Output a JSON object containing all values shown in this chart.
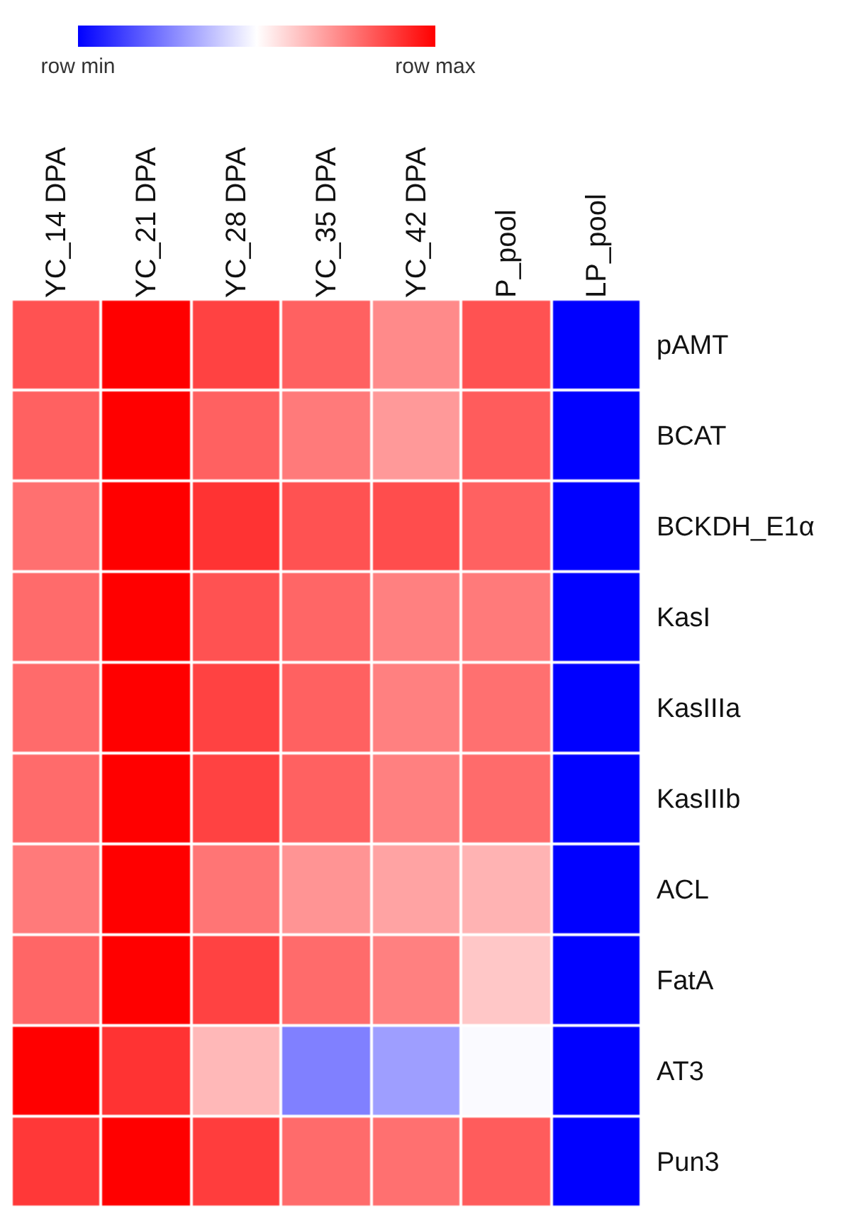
{
  "chart_data": {
    "type": "heatmap",
    "categories": [
      "YC_14 DPA",
      "YC_21 DPA",
      "YC_28 DPA",
      "YC_35 DPA",
      "YC_42 DPA",
      "P_pool",
      "LP_pool"
    ],
    "y_categories": [
      "pAMT",
      "BCAT",
      "BCKDH_E1α",
      "KasI",
      "KasIIIa",
      "KasIIIb",
      "ACL",
      "FatA",
      "AT3",
      "Pun3"
    ],
    "cells": [
      [
        0.84,
        1,
        0.87,
        0.81,
        0.73,
        0.84,
        0
      ],
      [
        0.81,
        1,
        0.81,
        0.76,
        0.7,
        0.82,
        0
      ],
      [
        0.78,
        1,
        0.9,
        0.84,
        0.85,
        0.81,
        0
      ],
      [
        0.79,
        1,
        0.84,
        0.8,
        0.75,
        0.76,
        0
      ],
      [
        0.79,
        1,
        0.87,
        0.81,
        0.75,
        0.78,
        0
      ],
      [
        0.79,
        1,
        0.87,
        0.81,
        0.75,
        0.79,
        0
      ],
      [
        0.76,
        1,
        0.77,
        0.71,
        0.68,
        0.65,
        0
      ],
      [
        0.8,
        1,
        0.87,
        0.79,
        0.75,
        0.61,
        0
      ],
      [
        1,
        0.9,
        0.64,
        0.25,
        0.31,
        0.49,
        0
      ],
      [
        0.89,
        1,
        0.88,
        0.79,
        0.78,
        0.82,
        0
      ]
    ],
    "clim": [
      0,
      1
    ],
    "cticks": [
      {
        "value": 0,
        "label": "row min"
      },
      {
        "value": 1,
        "label": "row max"
      }
    ]
  }
}
